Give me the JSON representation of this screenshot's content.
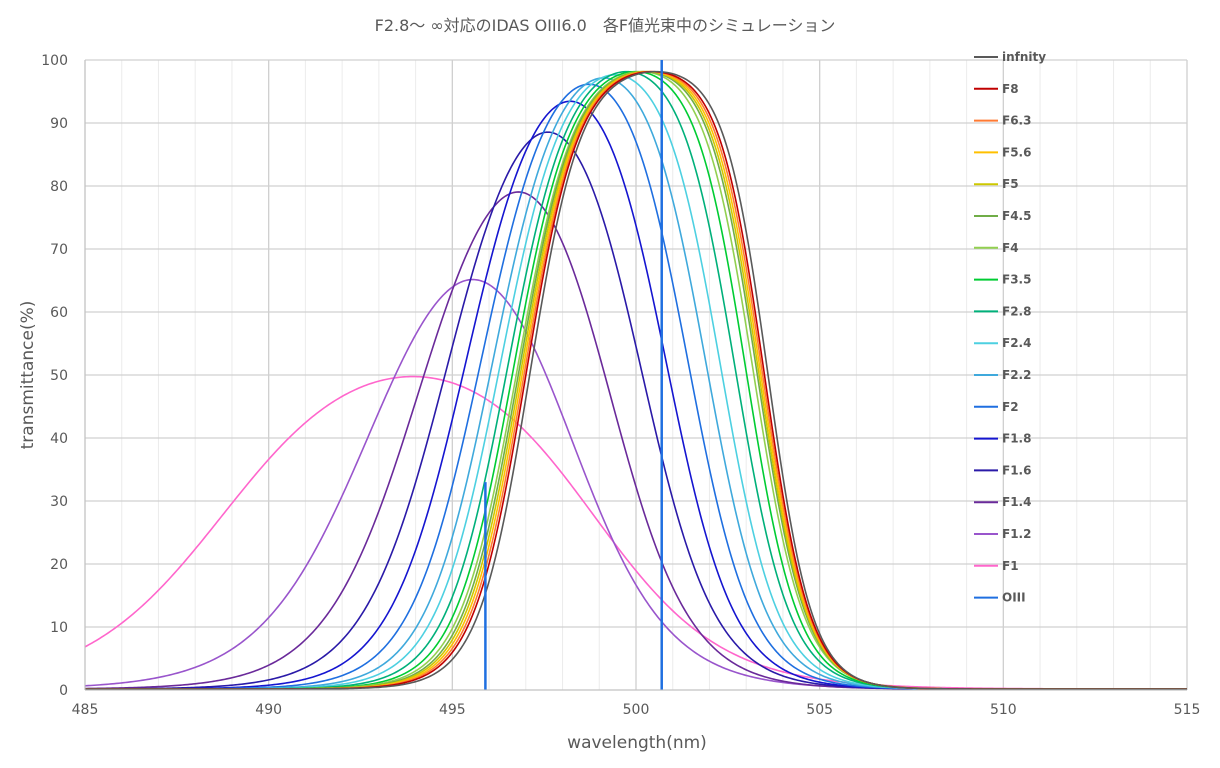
{
  "chart_data": {
    "type": "line",
    "title": "F2.8～ ∞対応のIDAS OIII6.0　各F値光束中のシミュレーション",
    "xlabel": "wavelength(nm)",
    "ylabel": "transmittance(%)",
    "xlim": [
      485,
      515
    ],
    "ylim": [
      0,
      100
    ],
    "x_ticks": [
      485,
      490,
      495,
      500,
      505,
      510,
      515
    ],
    "y_ticks": [
      0,
      10,
      20,
      30,
      40,
      50,
      60,
      70,
      80,
      90,
      100
    ],
    "grid": true,
    "minor_x_grid_step": 1,
    "legend_position": "right",
    "series": [
      {
        "name": "infnity",
        "color": "#595959",
        "peak": 98.0,
        "left_edge": 497.1,
        "right_edge": 503.6,
        "left_width": 0.7,
        "right_width": 0.6
      },
      {
        "name": "F8",
        "color": "#c00000",
        "peak": 98.0,
        "left_edge": 497.0,
        "right_edge": 503.5,
        "left_width": 0.72,
        "right_width": 0.62
      },
      {
        "name": "F6.3",
        "color": "#ff7a33",
        "peak": 98.0,
        "left_edge": 496.95,
        "right_edge": 503.45,
        "left_width": 0.73,
        "right_width": 0.63
      },
      {
        "name": "F5.6",
        "color": "#ffc000",
        "peak": 98.0,
        "left_edge": 496.9,
        "right_edge": 503.4,
        "left_width": 0.74,
        "right_width": 0.64
      },
      {
        "name": "F5",
        "color": "#cdc800",
        "peak": 98.0,
        "left_edge": 496.85,
        "right_edge": 503.35,
        "left_width": 0.75,
        "right_width": 0.65
      },
      {
        "name": "F4.5",
        "color": "#70ad47",
        "peak": 98.0,
        "left_edge": 496.8,
        "right_edge": 503.3,
        "left_width": 0.76,
        "right_width": 0.66
      },
      {
        "name": "F4",
        "color": "#92d050",
        "peak": 98.0,
        "left_edge": 496.75,
        "right_edge": 503.2,
        "left_width": 0.78,
        "right_width": 0.68
      },
      {
        "name": "F3.5",
        "color": "#00cc33",
        "peak": 98.0,
        "left_edge": 496.65,
        "right_edge": 503.0,
        "left_width": 0.8,
        "right_width": 0.7
      },
      {
        "name": "F2.8",
        "color": "#00b07a",
        "peak": 98.0,
        "left_edge": 496.5,
        "right_edge": 502.7,
        "left_width": 0.84,
        "right_width": 0.74
      },
      {
        "name": "F2.4",
        "color": "#4dd0e1",
        "peak": 97.5,
        "left_edge": 496.3,
        "right_edge": 502.3,
        "left_width": 0.88,
        "right_width": 0.78
      },
      {
        "name": "F2.2",
        "color": "#3fa9dc",
        "peak": 97.0,
        "left_edge": 496.1,
        "right_edge": 501.9,
        "left_width": 0.92,
        "right_width": 0.82
      },
      {
        "name": "F2",
        "color": "#1f6fe0",
        "peak": 96.0,
        "left_edge": 495.8,
        "right_edge": 501.4,
        "left_width": 0.98,
        "right_width": 0.86
      },
      {
        "name": "F1.8",
        "color": "#1515d0",
        "peak": 93.3,
        "left_edge": 495.4,
        "right_edge": 500.8,
        "left_width": 1.05,
        "right_width": 0.92
      },
      {
        "name": "F1.6",
        "color": "#2a1aa8",
        "peak": 88.4,
        "left_edge": 494.9,
        "right_edge": 500.1,
        "left_width": 1.15,
        "right_width": 1.0
      },
      {
        "name": "F1.4",
        "color": "#6a2a9a",
        "peak": 78.9,
        "left_edge": 494.2,
        "right_edge": 499.2,
        "left_width": 1.3,
        "right_width": 1.1
      },
      {
        "name": "F1.2",
        "color": "#9955cc",
        "peak": 65.0,
        "left_edge": 493.0,
        "right_edge": 498.0,
        "left_width": 1.55,
        "right_width": 1.35
      },
      {
        "name": "F1",
        "color": "#ff66cc",
        "peak": 49.6,
        "left_edge": 488.8,
        "right_edge": 498.8,
        "left_width": 1.9,
        "right_width": 1.75
      },
      {
        "name": "OIII",
        "color": "#1f6fe0",
        "lines": [
          {
            "x": 495.9,
            "y": 33
          },
          {
            "x": 500.7,
            "y": 100
          }
        ]
      }
    ]
  }
}
